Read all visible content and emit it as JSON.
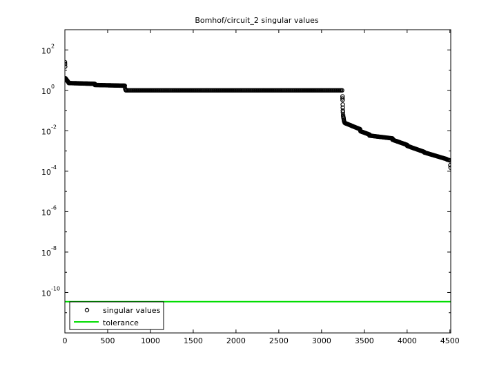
{
  "chart_data": {
    "type": "scatter",
    "title": "Bomhof/circuit_2 singular values",
    "xlabel": "",
    "ylabel": "",
    "x_scale": "linear",
    "y_scale": "log",
    "xlim": [
      0,
      4510
    ],
    "ylim": [
      1e-12,
      1000.0
    ],
    "x_ticks": [
      0,
      500,
      1000,
      1500,
      2000,
      2500,
      3000,
      3500,
      4000,
      4500
    ],
    "x_tick_labels": [
      "0",
      "500",
      "1000",
      "1500",
      "2000",
      "2500",
      "3000",
      "3500",
      "4000",
      "4500"
    ],
    "y_ticks": [
      100.0,
      1.0,
      0.01,
      0.0001,
      1e-06,
      1e-08,
      1e-10
    ],
    "y_tick_labels": [
      {
        "base": "10",
        "exp": "2"
      },
      {
        "base": "10",
        "exp": "0"
      },
      {
        "base": "10",
        "exp": "-2"
      },
      {
        "base": "10",
        "exp": "-4"
      },
      {
        "base": "10",
        "exp": "-6"
      },
      {
        "base": "10",
        "exp": "-8"
      },
      {
        "base": "10",
        "exp": "-10"
      }
    ],
    "grid": false,
    "legend_position": "bottom-left",
    "series": [
      {
        "name": "singular values",
        "kind": "markers",
        "marker": "circle-open",
        "color": "#000000",
        "segments": [
          {
            "x": [
              1,
              2,
              3
            ],
            "y": [
              25,
              20,
              15
            ]
          },
          {
            "x_start": 5,
            "x_end": 45,
            "y_start": 4.0,
            "y_end": 2.4,
            "step": 2
          },
          {
            "x_start": 45,
            "x_end": 350,
            "y_start": 2.3,
            "y_end": 2.1,
            "step": 8
          },
          {
            "x_start": 350,
            "x_end": 700,
            "y_start": 1.85,
            "y_end": 1.7,
            "step": 8
          },
          {
            "x": [
              705,
              710,
              715
            ],
            "y": [
              1.2,
              1.05,
              1.0
            ]
          },
          {
            "x_start": 720,
            "x_end": 3240,
            "y_start": 1.0,
            "y_end": 1.0,
            "step": 12
          },
          {
            "x": [
              3245,
              3245,
              3246,
              3247,
              3248,
              3249,
              3250,
              3252,
              3254,
              3256,
              3258,
              3260,
              3263,
              3266,
              3270
            ],
            "y": [
              0.5,
              0.4,
              0.33,
              0.2,
              0.14,
              0.1,
              0.08,
              0.06,
              0.05,
              0.045,
              0.04,
              0.035,
              0.03,
              0.028,
              0.025
            ]
          },
          {
            "x_start": 3275,
            "x_end": 3450,
            "y_start": 0.024,
            "y_end": 0.012,
            "step": 6
          },
          {
            "x_start": 3455,
            "x_end": 3560,
            "y_start": 0.0095,
            "y_end": 0.0065,
            "step": 6
          },
          {
            "x_start": 3560,
            "x_end": 3830,
            "y_start": 0.0058,
            "y_end": 0.0042,
            "step": 8
          },
          {
            "x_start": 3830,
            "x_end": 4000,
            "y_start": 0.0036,
            "y_end": 0.002,
            "step": 7
          },
          {
            "x_start": 4000,
            "x_end": 4200,
            "y_start": 0.0018,
            "y_end": 0.0009,
            "step": 7
          },
          {
            "x_start": 4200,
            "x_end": 4460,
            "y_start": 0.00085,
            "y_end": 0.0004,
            "step": 7
          },
          {
            "x": [
              4465,
              4475,
              4485,
              4495,
              4500,
              4505,
              4508
            ],
            "y": [
              0.00038,
              0.00037,
              0.00036,
              0.00035,
              0.00034,
              0.0002,
              0.00015
            ]
          }
        ]
      },
      {
        "name": "tolerance",
        "kind": "line",
        "color": "#00dd00",
        "x": [
          0,
          4510
        ],
        "y": [
          3.5e-11,
          3.5e-11
        ]
      }
    ]
  }
}
